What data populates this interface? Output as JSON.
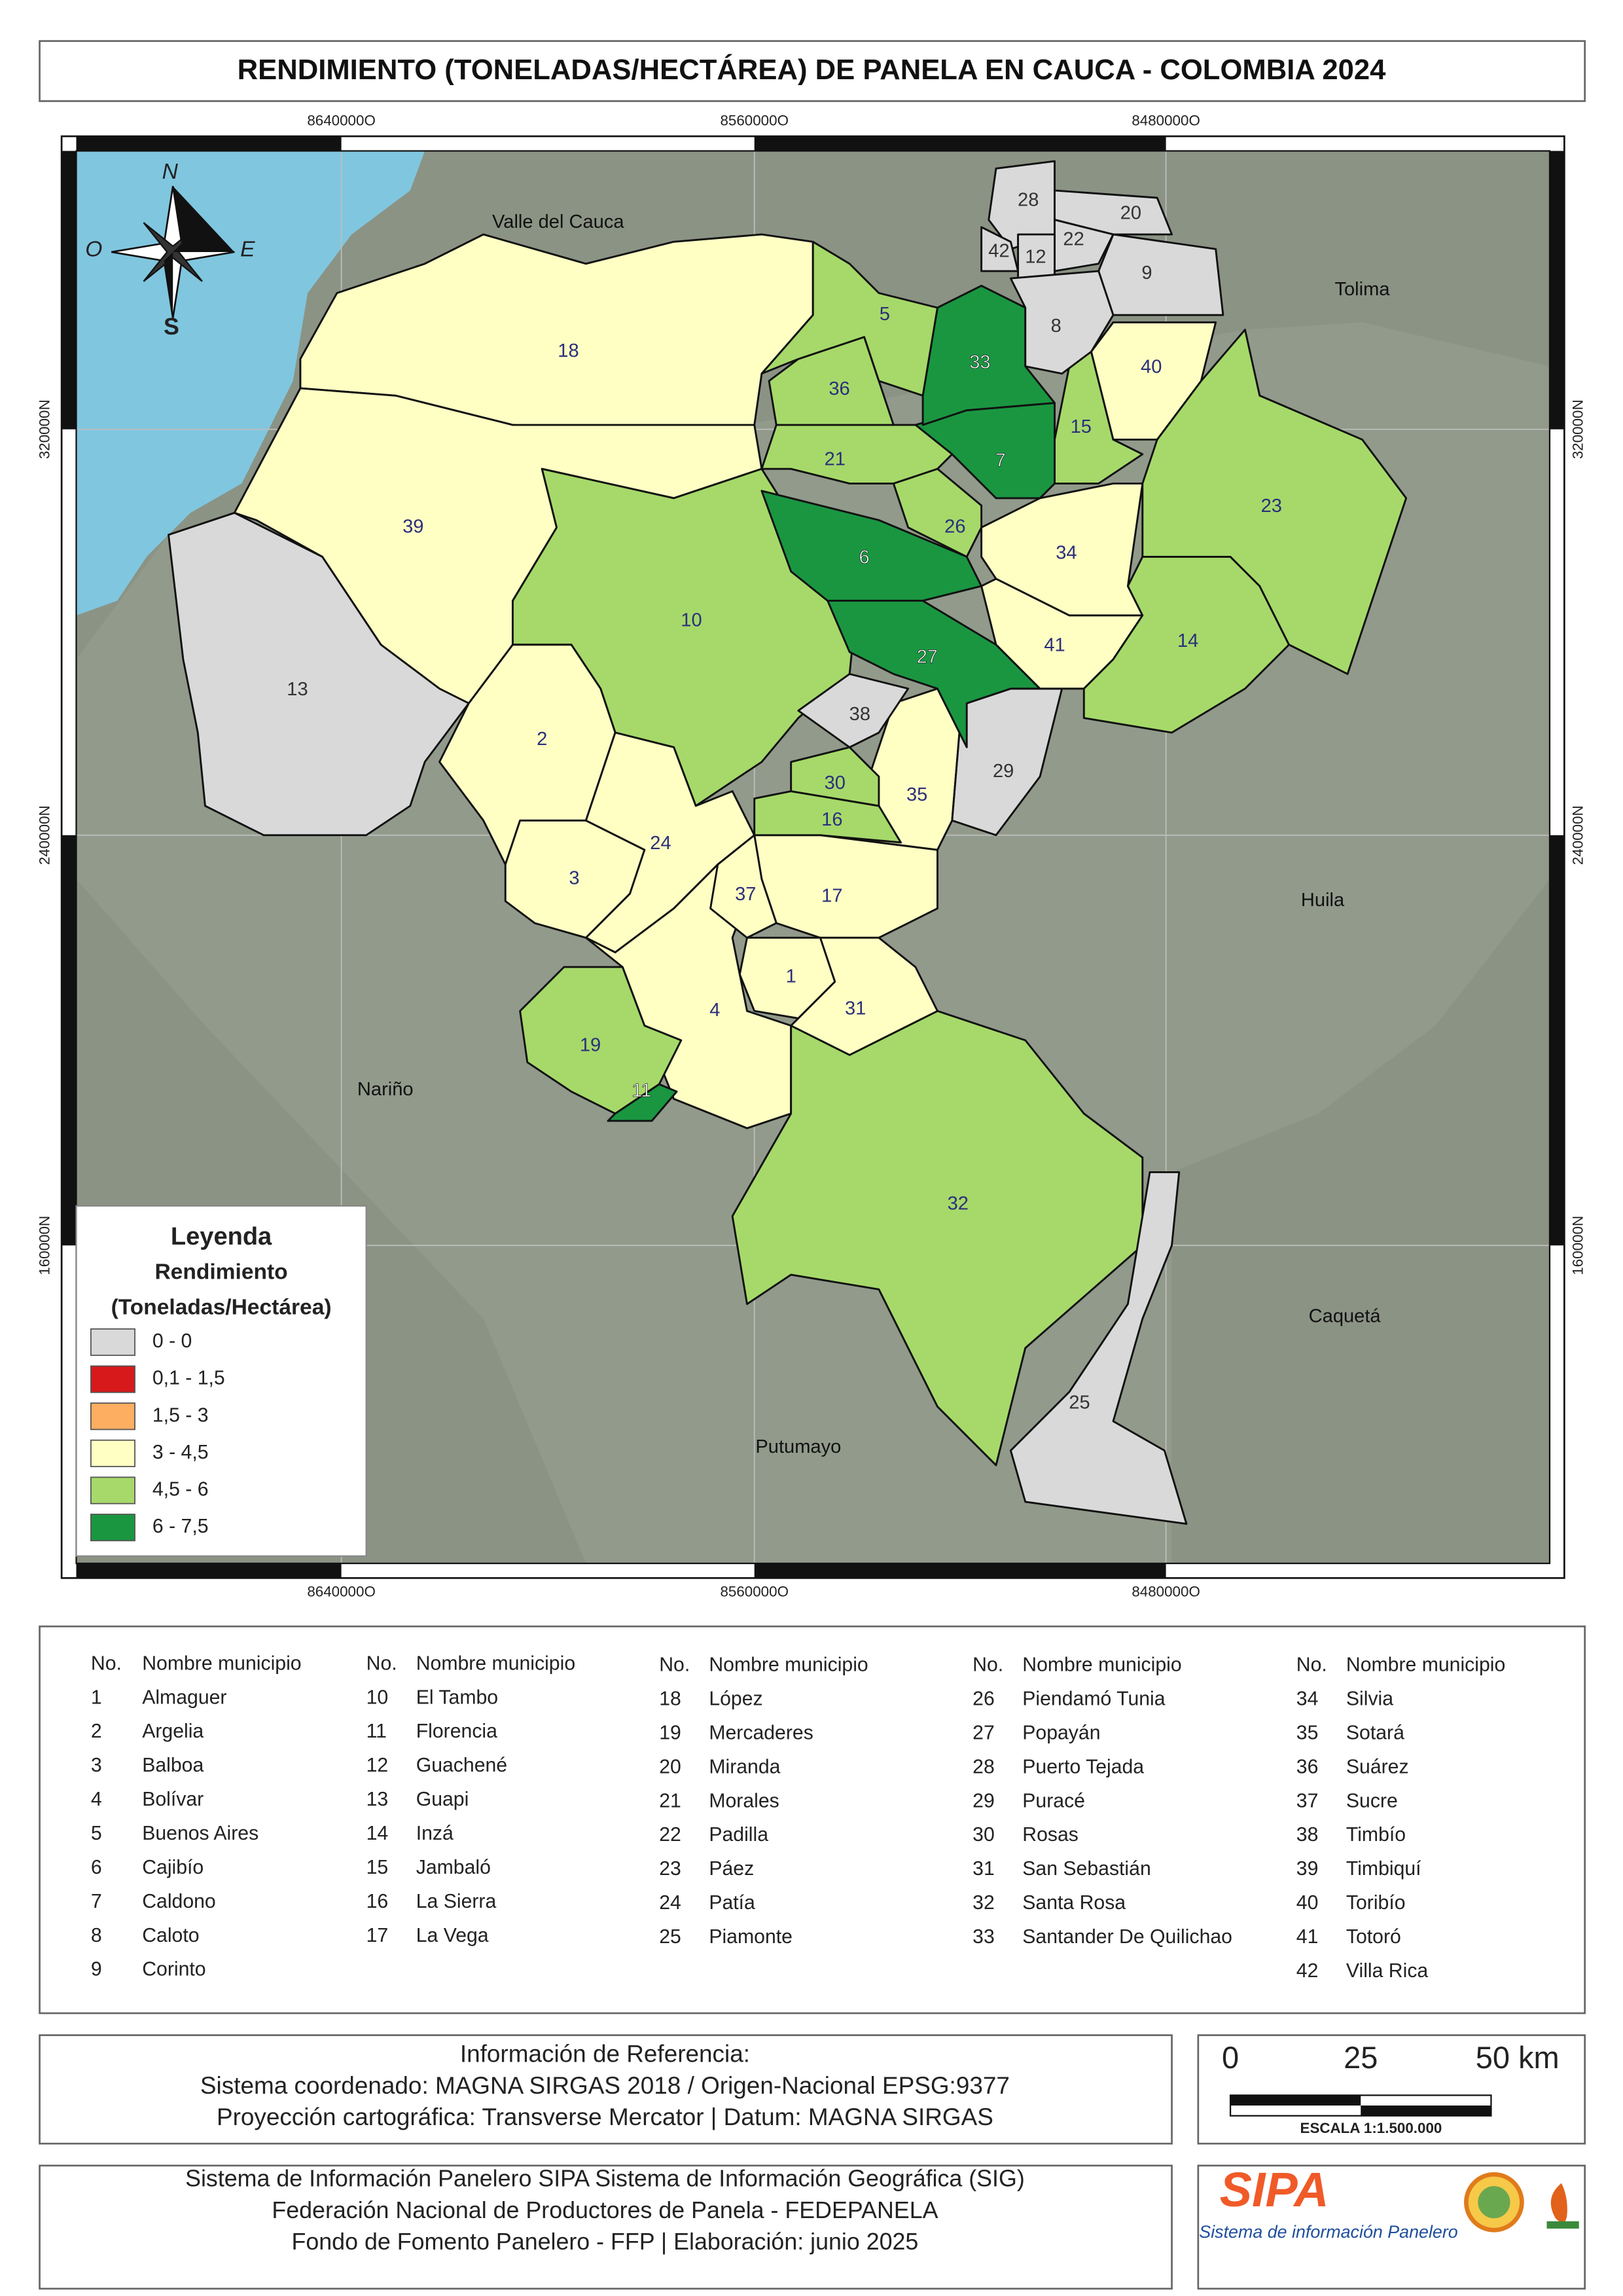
{
  "header": {
    "title": "RENDIMIENTO (TONELADAS/HECTÁREA) DE PANELA EN CAUCA - COLOMBIA 2024"
  },
  "grid_labels": {
    "x": [
      "8640000O",
      "8560000O",
      "8480000O"
    ],
    "y": [
      "320000N",
      "240000N",
      "160000N"
    ]
  },
  "compass": {
    "n": "N",
    "s": "S",
    "e": "E",
    "o": "O"
  },
  "neighbors": [
    "Valle del Cauca",
    "Tolima",
    "Huila",
    "Nariño",
    "Caquetá",
    "Putumayo"
  ],
  "map": {
    "regions": [
      {
        "label": "18",
        "color": "#ffffc4"
      },
      {
        "label": "39",
        "color": "#ffffc4"
      },
      {
        "label": "13",
        "color": "#d9d9d9"
      },
      {
        "label": "10",
        "color": "#a6d96a"
      },
      {
        "label": "2",
        "color": "#ffffc4"
      },
      {
        "label": "3",
        "color": "#ffffc4"
      },
      {
        "label": "24",
        "color": "#ffffc4"
      },
      {
        "label": "4",
        "color": "#ffffc4"
      },
      {
        "label": "19",
        "color": "#a6d96a"
      },
      {
        "label": "11",
        "color": "#1a9641"
      },
      {
        "label": "32",
        "color": "#a6d96a"
      },
      {
        "label": "25",
        "color": "#d9d9d9"
      },
      {
        "label": "17",
        "color": "#ffffc4"
      },
      {
        "label": "37",
        "color": "#ffffc4"
      },
      {
        "label": "1",
        "color": "#ffffc4"
      },
      {
        "label": "31",
        "color": "#ffffc4"
      },
      {
        "label": "35",
        "color": "#ffffc4"
      },
      {
        "label": "16",
        "color": "#a6d96a"
      },
      {
        "label": "30",
        "color": "#a6d96a"
      },
      {
        "label": "38",
        "color": "#d9d9d9"
      },
      {
        "label": "29",
        "color": "#d9d9d9"
      },
      {
        "label": "27",
        "color": "#1a9641"
      },
      {
        "label": "6",
        "color": "#1a9641"
      },
      {
        "label": "41",
        "color": "#ffffc4"
      },
      {
        "label": "34",
        "color": "#ffffc4"
      },
      {
        "label": "14",
        "color": "#a6d96a"
      },
      {
        "label": "23",
        "color": "#a6d96a"
      },
      {
        "label": "15",
        "color": "#a6d96a"
      },
      {
        "label": "40",
        "color": "#ffffc4"
      },
      {
        "label": "7",
        "color": "#1a9641"
      },
      {
        "label": "33",
        "color": "#1a9641"
      },
      {
        "label": "26",
        "color": "#a6d96a"
      },
      {
        "label": "21",
        "color": "#a6d96a"
      },
      {
        "label": "36",
        "color": "#a6d96a"
      },
      {
        "label": "5",
        "color": "#a6d96a"
      },
      {
        "label": "28",
        "color": "#d9d9d9"
      },
      {
        "label": "20",
        "color": "#d9d9d9"
      },
      {
        "label": "22",
        "color": "#d9d9d9"
      },
      {
        "label": "42",
        "color": "#d9d9d9"
      },
      {
        "label": "12",
        "color": "#d9d9d9"
      },
      {
        "label": "9",
        "color": "#d9d9d9"
      },
      {
        "label": "8",
        "color": "#d9d9d9"
      }
    ]
  },
  "legend": {
    "title": "Leyenda",
    "subtitle": "Rendimiento",
    "unit": "(Toneladas/Hectárea)",
    "items": [
      {
        "label": "0 - 0",
        "color": "#d9d9d9"
      },
      {
        "label": "0,1 - 1,5",
        "color": "#d7191c"
      },
      {
        "label": "1,5 - 3",
        "color": "#fdae61"
      },
      {
        "label": "3 - 4,5",
        "color": "#ffffc4"
      },
      {
        "label": "4,5 - 6",
        "color": "#a6d96a"
      },
      {
        "label": "6 - 7,5",
        "color": "#1a9641"
      }
    ]
  },
  "table": {
    "columns": [
      {
        "header": [
          "No.",
          "Nombre municipio"
        ],
        "rows": [
          [
            "1",
            "Almaguer"
          ],
          [
            "2",
            "Argelia"
          ],
          [
            "3",
            "Balboa"
          ],
          [
            "4",
            "Bolívar"
          ],
          [
            "5",
            "Buenos Aires"
          ],
          [
            "6",
            "Cajibío"
          ],
          [
            "7",
            "Caldono"
          ],
          [
            "8",
            "Caloto"
          ],
          [
            "9",
            "Corinto"
          ]
        ]
      },
      {
        "header": [
          "No.",
          "Nombre municipio"
        ],
        "rows": [
          [
            "10",
            "El Tambo"
          ],
          [
            "11",
            "Florencia"
          ],
          [
            "12",
            "Guachené"
          ],
          [
            "13",
            "Guapi"
          ],
          [
            "14",
            "Inzá"
          ],
          [
            "15",
            "Jambaló"
          ],
          [
            "16",
            "La Sierra"
          ],
          [
            "17",
            "La Vega"
          ]
        ]
      },
      {
        "header": [
          "No.",
          "Nombre municipio"
        ],
        "rows": [
          [
            "18",
            "López"
          ],
          [
            "19",
            "Mercaderes"
          ],
          [
            "20",
            "Miranda"
          ],
          [
            "21",
            "Morales"
          ],
          [
            "22",
            "Padilla"
          ],
          [
            "23",
            "Páez"
          ],
          [
            "24",
            "Patía"
          ],
          [
            "25",
            "Piamonte"
          ]
        ]
      },
      {
        "header": [
          "No.",
          "Nombre municipio"
        ],
        "rows": [
          [
            "26",
            "Piendamó Tunia"
          ],
          [
            "27",
            "Popayán"
          ],
          [
            "28",
            "Puerto Tejada"
          ],
          [
            "29",
            "Puracé"
          ],
          [
            "30",
            "Rosas"
          ],
          [
            "31",
            "San Sebastián"
          ],
          [
            "32",
            "Santa Rosa"
          ],
          [
            "33",
            "Santander De Quilichao"
          ]
        ]
      },
      {
        "header": [
          "No.",
          "Nombre municipio"
        ],
        "rows": [
          [
            "34",
            "Silvia"
          ],
          [
            "35",
            "Sotará"
          ],
          [
            "36",
            "Suárez"
          ],
          [
            "37",
            "Sucre"
          ],
          [
            "38",
            "Timbío"
          ],
          [
            "39",
            "Timbiquí"
          ],
          [
            "40",
            "Toribío"
          ],
          [
            "41",
            "Totoró"
          ],
          [
            "42",
            "Villa Rica"
          ]
        ]
      }
    ]
  },
  "reference": {
    "lines": [
      "Información de Referencia:",
      "Sistema coordenado: MAGNA SIRGAS 2018 / Origen-Nacional EPSG:9377",
      "Proyección cartográfica: Transverse Mercator | Datum: MAGNA SIRGAS"
    ]
  },
  "scale": {
    "labels": [
      "0",
      "25",
      "50 km"
    ],
    "text": "ESCALA 1:1.500.000"
  },
  "footer": {
    "lines": [
      "Sistema de Información Panelero SIPA  Sistema de Información Geográfica (SIG)",
      "Federación Nacional de Productores de Panela - FEDEPANELA",
      "Fondo de Fomento Panelero - FFP |  Elaboración: junio 2025"
    ]
  },
  "logo": {
    "name": "SIPA",
    "tagline": "Sistema de información Panelero"
  }
}
